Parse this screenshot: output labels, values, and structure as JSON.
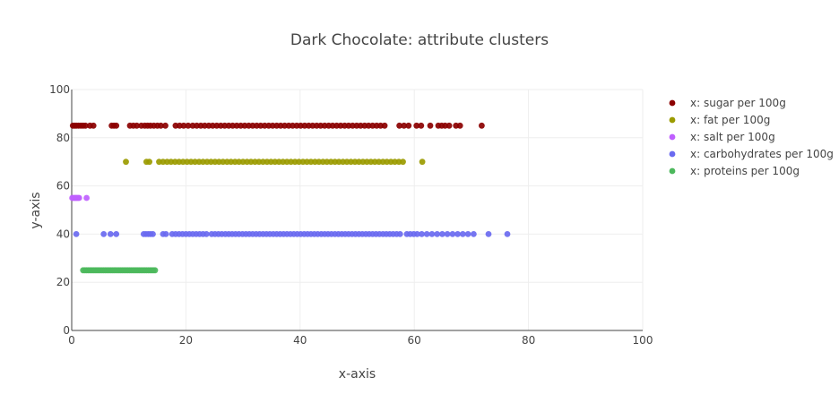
{
  "chart_data": {
    "type": "scatter",
    "title": "Dark Chocolate: attribute clusters",
    "xlabel": "x-axis",
    "ylabel": "y-axis",
    "xlim": [
      0,
      100
    ],
    "ylim": [
      0,
      100
    ],
    "xticks": [
      0,
      20,
      40,
      60,
      80,
      100
    ],
    "yticks": [
      0,
      20,
      40,
      60,
      80,
      100
    ],
    "grid": true,
    "legend_position": "top-right",
    "series": [
      {
        "name": "x: sugar per 100g",
        "color": "#8b0000",
        "y": 85,
        "x": [
          0.2,
          0.5,
          0.8,
          1.2,
          1.6,
          2.0,
          2.4,
          3.2,
          3.8,
          7.0,
          7.4,
          7.8,
          10.2,
          10.8,
          11.4,
          12.2,
          12.8,
          13.3,
          13.8,
          14.4,
          15.0,
          15.6,
          16.4,
          18.2,
          18.9,
          19.6,
          20.4,
          21.2,
          21.9,
          22.6,
          23.3,
          24.0,
          24.7,
          25.4,
          26.1,
          26.8,
          27.5,
          28.2,
          28.9,
          29.6,
          30.3,
          31.0,
          31.7,
          32.4,
          33.1,
          33.8,
          34.5,
          35.2,
          35.9,
          36.6,
          37.3,
          38.0,
          38.7,
          39.4,
          40.1,
          40.8,
          41.5,
          42.2,
          42.9,
          43.6,
          44.3,
          45.0,
          45.7,
          46.4,
          47.1,
          47.8,
          48.5,
          49.2,
          49.9,
          50.6,
          51.3,
          52.0,
          52.7,
          53.4,
          54.1,
          54.8,
          57.4,
          58.2,
          59.0,
          60.4,
          61.2,
          62.8,
          64.2,
          64.8,
          65.4,
          66.1,
          67.3,
          68.0,
          71.8
        ]
      },
      {
        "name": "x: fat per 100g",
        "color": "#9b9b00",
        "y": 70,
        "x": [
          9.5,
          13.1,
          13.6,
          15.3,
          16.0,
          16.7,
          17.4,
          18.1,
          18.8,
          19.5,
          20.2,
          20.9,
          21.6,
          22.3,
          23.0,
          23.7,
          24.4,
          25.1,
          25.8,
          26.5,
          27.2,
          27.9,
          28.6,
          29.3,
          30.0,
          30.7,
          31.4,
          32.1,
          32.8,
          33.5,
          34.2,
          34.9,
          35.6,
          36.3,
          37.0,
          37.7,
          38.4,
          39.1,
          39.8,
          40.5,
          41.2,
          41.9,
          42.6,
          43.3,
          44.0,
          44.7,
          45.4,
          46.1,
          46.8,
          47.5,
          48.2,
          48.9,
          49.6,
          50.3,
          51.0,
          51.7,
          52.4,
          53.1,
          53.8,
          54.5,
          55.2,
          55.9,
          56.6,
          57.3,
          58.0,
          61.4
        ]
      },
      {
        "name": "x: salt per 100g",
        "color": "#bf5fff",
        "y": 55,
        "x": [
          0.1,
          0.3,
          0.5,
          0.7,
          0.9,
          1.1,
          1.3,
          2.6
        ]
      },
      {
        "name": "x: carbohydrates per 100g",
        "color": "#6a6af0",
        "y": 40,
        "x": [
          0.8,
          5.6,
          6.8,
          7.8,
          12.6,
          13.0,
          13.4,
          13.8,
          14.2,
          16.0,
          16.5,
          17.6,
          18.2,
          18.8,
          19.4,
          20.0,
          20.6,
          21.2,
          21.8,
          22.4,
          23.0,
          23.6,
          24.5,
          25.1,
          25.7,
          26.3,
          26.9,
          27.5,
          28.1,
          28.7,
          29.3,
          29.9,
          30.5,
          31.1,
          31.7,
          32.3,
          32.9,
          33.5,
          34.1,
          34.7,
          35.3,
          35.9,
          36.5,
          37.1,
          37.7,
          38.3,
          38.9,
          39.5,
          40.1,
          40.7,
          41.3,
          41.9,
          42.5,
          43.1,
          43.7,
          44.3,
          44.9,
          45.5,
          46.1,
          46.7,
          47.3,
          47.9,
          48.5,
          49.1,
          49.7,
          50.3,
          50.9,
          51.5,
          52.1,
          52.7,
          53.3,
          53.9,
          54.5,
          55.1,
          55.7,
          56.3,
          56.9,
          57.5,
          58.7,
          59.3,
          59.9,
          60.5,
          61.3,
          62.2,
          63.1,
          64.0,
          64.9,
          65.8,
          66.7,
          67.6,
          68.5,
          69.4,
          70.4,
          73.0,
          76.3
        ]
      },
      {
        "name": "x: proteins per 100g",
        "color": "#4cb85c",
        "y": 25,
        "x": [
          2.0,
          2.3,
          2.6,
          2.9,
          3.2,
          3.5,
          3.8,
          4.1,
          4.4,
          4.7,
          5.0,
          5.3,
          5.6,
          5.9,
          6.2,
          6.5,
          6.8,
          7.1,
          7.4,
          7.7,
          8.0,
          8.3,
          8.6,
          8.9,
          9.2,
          9.5,
          9.8,
          10.1,
          10.4,
          10.7,
          11.0,
          11.3,
          11.6,
          11.9,
          12.2,
          12.5,
          12.8,
          13.1,
          13.4,
          13.7,
          14.0,
          14.3,
          14.6
        ]
      }
    ]
  }
}
